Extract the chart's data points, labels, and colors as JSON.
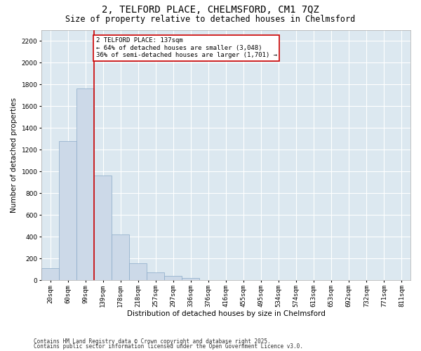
{
  "title_line1": "2, TELFORD PLACE, CHELMSFORD, CM1 7QZ",
  "title_line2": "Size of property relative to detached houses in Chelmsford",
  "xlabel": "Distribution of detached houses by size in Chelmsford",
  "ylabel": "Number of detached properties",
  "bar_color": "#ccd9e8",
  "bar_edge_color": "#8aaac8",
  "background_color": "#dce8f0",
  "fig_background": "#ffffff",
  "grid_color": "#ffffff",
  "annotation_box_color": "#cc0000",
  "vline_color": "#cc0000",
  "categories": [
    "20sqm",
    "60sqm",
    "99sqm",
    "139sqm",
    "178sqm",
    "218sqm",
    "257sqm",
    "297sqm",
    "336sqm",
    "376sqm",
    "416sqm",
    "455sqm",
    "495sqm",
    "534sqm",
    "574sqm",
    "613sqm",
    "653sqm",
    "692sqm",
    "732sqm",
    "771sqm",
    "811sqm"
  ],
  "values": [
    110,
    1280,
    1760,
    960,
    420,
    155,
    70,
    40,
    20,
    0,
    0,
    0,
    0,
    0,
    0,
    0,
    0,
    0,
    0,
    0,
    0
  ],
  "ylim": [
    0,
    2300
  ],
  "yticks": [
    0,
    200,
    400,
    600,
    800,
    1000,
    1200,
    1400,
    1600,
    1800,
    2000,
    2200
  ],
  "vline_x": 2.5,
  "annotation_text_line1": "2 TELFORD PLACE: 137sqm",
  "annotation_text_line2": "← 64% of detached houses are smaller (3,048)",
  "annotation_text_line3": "36% of semi-detached houses are larger (1,701) →",
  "footnote_line1": "Contains HM Land Registry data © Crown copyright and database right 2025.",
  "footnote_line2": "Contains public sector information licensed under the Open Government Licence v3.0.",
  "title_fontsize": 10,
  "subtitle_fontsize": 8.5,
  "tick_fontsize": 6.5,
  "ylabel_fontsize": 7.5,
  "xlabel_fontsize": 7.5,
  "annotation_fontsize": 6.5,
  "footnote_fontsize": 5.5
}
